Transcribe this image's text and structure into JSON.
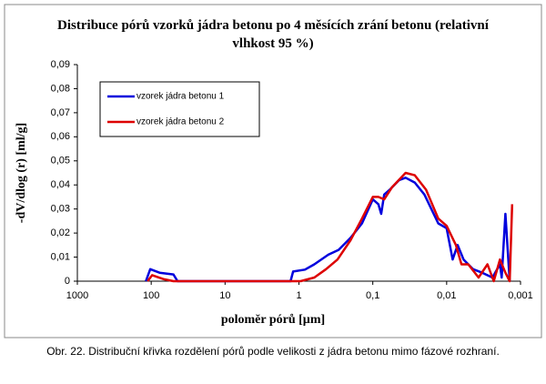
{
  "chart_data": {
    "type": "line",
    "title": "Distribuce pórů vzorků jádra betonu po 4 měsících zrání betonu (relativní vlhkost 95 %)",
    "x_label": "poloměr pórů [µm]",
    "y_label": "-dV/dlog (r) [ml/g]",
    "caption": "Obr. 22. Distribuční křivka rozdělení pórů podle velikosti z jádra betonu mimo fázové rozhraní.",
    "xlog": true,
    "xlim": [
      1000,
      0.001
    ],
    "xticks": [
      1000,
      100,
      10,
      1,
      {
        "value": 0.1,
        "label": "0,1"
      },
      {
        "value": 0.01,
        "label": "0,01"
      },
      {
        "value": 0.001,
        "label": "0,001"
      }
    ],
    "ylim": [
      0,
      0.09
    ],
    "yticks": [
      0,
      {
        "value": 0.01,
        "label": "0,01"
      },
      {
        "value": 0.02,
        "label": "0,02"
      },
      {
        "value": 0.03,
        "label": "0,03"
      },
      {
        "value": 0.04,
        "label": "0,04"
      },
      {
        "value": 0.05,
        "label": "0,05"
      },
      {
        "value": 0.06,
        "label": "0,06"
      },
      {
        "value": 0.07,
        "label": "0,07"
      },
      {
        "value": 0.08,
        "label": "0,08"
      },
      {
        "value": 0.09,
        "label": "0,09"
      }
    ],
    "grid": false,
    "legend": "upper left",
    "series": [
      {
        "name": "vzorek jádra betonu 1",
        "color": "#0000dd",
        "x": [
          118,
          103,
          77,
          50,
          44,
          1.3,
          1.2,
          0.83,
          0.62,
          0.4,
          0.29,
          0.2,
          0.14,
          0.1,
          0.084,
          0.077,
          0.07,
          0.059,
          0.044,
          0.036,
          0.027,
          0.02,
          0.013,
          0.01,
          0.0083,
          0.0071,
          0.0059,
          0.0044,
          0.0033,
          0.0024,
          0.0019,
          0.0018,
          0.0016,
          0.0014
        ],
        "values": [
          0,
          0.005,
          0.0035,
          0.0028,
          0,
          0,
          0.004,
          0.0048,
          0.007,
          0.011,
          0.013,
          0.018,
          0.024,
          0.034,
          0.032,
          0.028,
          0.036,
          0.038,
          0.042,
          0.043,
          0.041,
          0.036,
          0.024,
          0.022,
          0.009,
          0.015,
          0.009,
          0.005,
          0.0035,
          0.0015,
          0.007,
          0.0015,
          0.028,
          0
        ]
      },
      {
        "name": "vzorek jádra betonu 2",
        "color": "#dd0000",
        "x": [
          112,
          97,
          67,
          50,
          0.95,
          0.62,
          0.43,
          0.3,
          0.2,
          0.14,
          0.1,
          0.084,
          0.07,
          0.055,
          0.036,
          0.027,
          0.019,
          0.013,
          0.01,
          0.0075,
          0.0063,
          0.0051,
          0.0037,
          0.0028,
          0.0023,
          0.0019,
          0.0016,
          0.0014,
          0.0013
        ],
        "values": [
          0,
          0.0025,
          0.0008,
          0,
          0,
          0.0015,
          0.005,
          0.009,
          0.017,
          0.026,
          0.035,
          0.035,
          0.034,
          0.039,
          0.045,
          0.044,
          0.038,
          0.026,
          0.023,
          0.015,
          0.007,
          0.007,
          0.0015,
          0.007,
          0,
          0.009,
          0.0035,
          0,
          0.032
        ]
      }
    ]
  }
}
